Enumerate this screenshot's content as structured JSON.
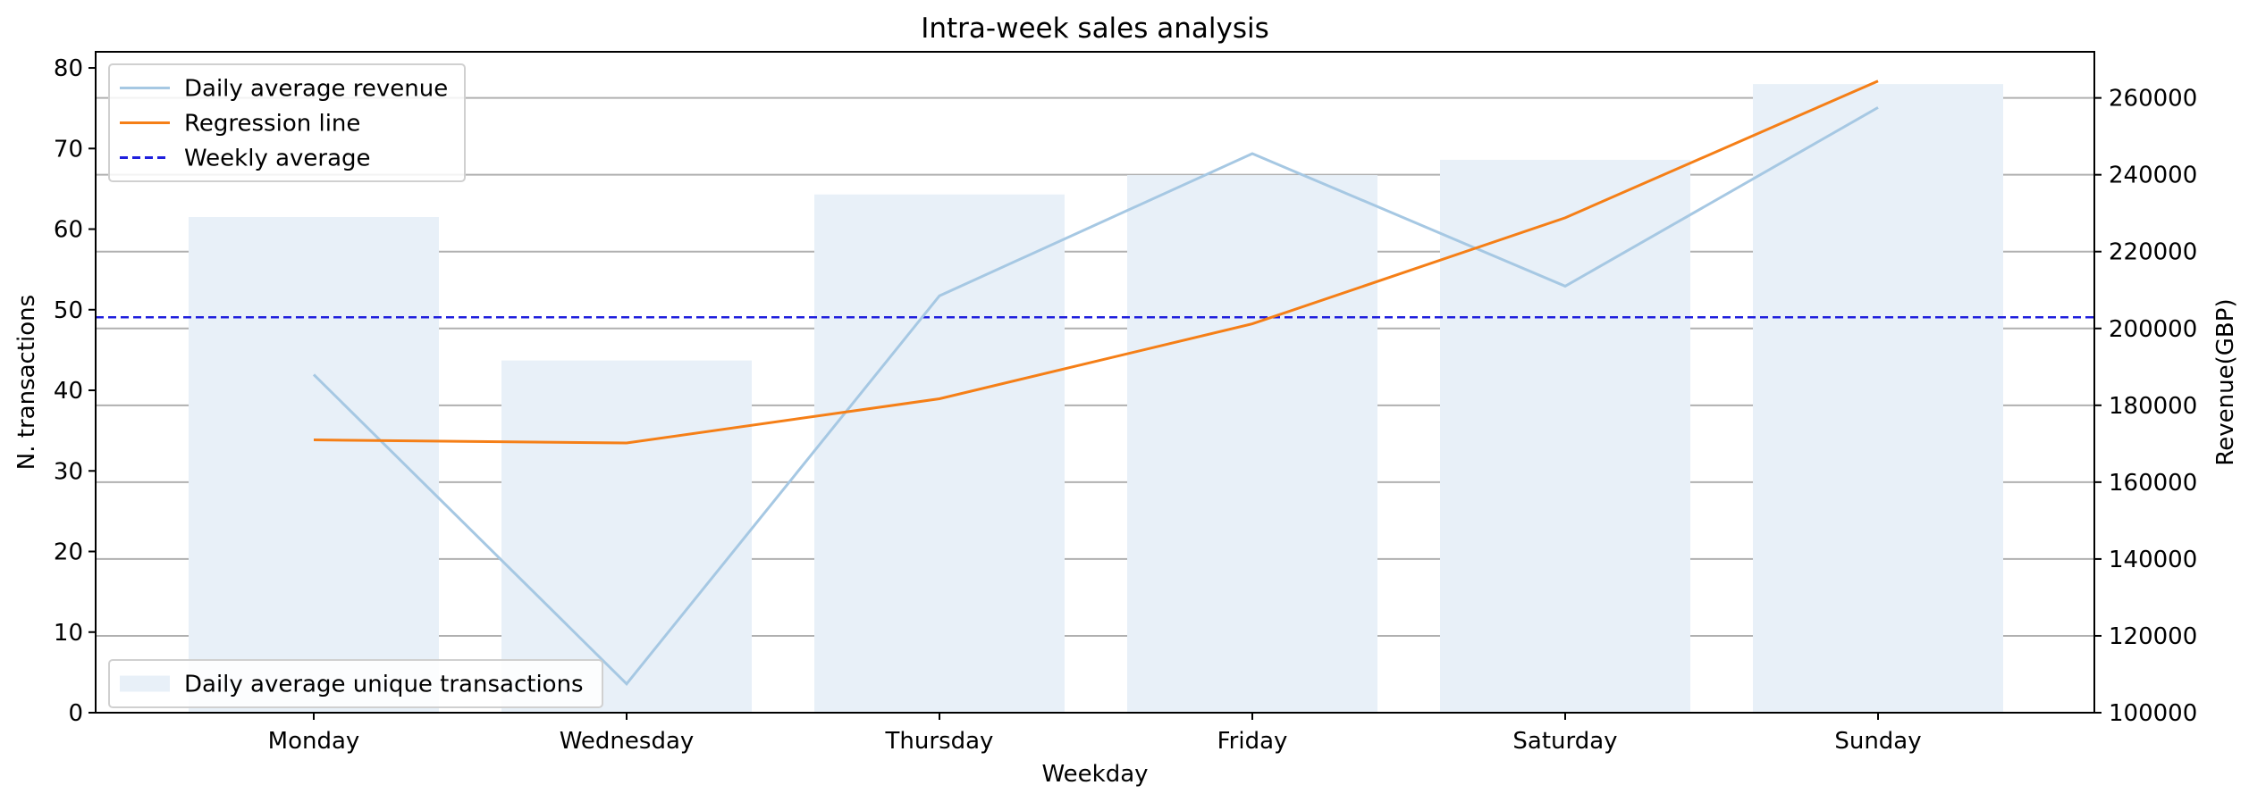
{
  "chart_data": {
    "type": "bar",
    "title": "Intra-week sales analysis",
    "xlabel": "Weekday",
    "ylabel_left": "N. transactions",
    "ylabel_right": "Revenue(GBP)",
    "categories": [
      "Monday",
      "Wednesday",
      "Thursday",
      "Friday",
      "Saturday",
      "Sunday"
    ],
    "ylim_left": [
      0,
      82
    ],
    "ylim_right": [
      100000,
      272000
    ],
    "yticks_left": [
      0,
      10,
      20,
      30,
      40,
      50,
      60,
      70,
      80
    ],
    "yticks_right": [
      100000,
      120000,
      140000,
      160000,
      180000,
      200000,
      220000,
      240000,
      260000
    ],
    "grid": "horizontal (right axis)",
    "series": [
      {
        "name": "Daily average unique transactions",
        "kind": "bar",
        "axis": "left",
        "color": "#e8f0f8",
        "values": [
          61.5,
          43.7,
          64.3,
          66.7,
          68.6,
          78.0
        ]
      },
      {
        "name": "Daily average revenue",
        "kind": "line",
        "axis": "right",
        "color": "#a6c8e3",
        "values": [
          188000,
          107500,
          208500,
          245500,
          211000,
          257500
        ]
      },
      {
        "name": "Regression line",
        "kind": "line",
        "axis": "right",
        "color": "#f57f17",
        "values": [
          171000,
          170200,
          181700,
          201200,
          228800,
          264400
        ]
      },
      {
        "name": "Weekly average",
        "kind": "hline",
        "axis": "right",
        "color": "#1f1fdd",
        "value": 202900
      }
    ],
    "legends": [
      {
        "placement": "upper-left",
        "items": [
          "Daily average revenue",
          "Regression line",
          "Weekly average"
        ]
      },
      {
        "placement": "lower-left",
        "items": [
          "Daily average unique transactions"
        ]
      }
    ]
  }
}
